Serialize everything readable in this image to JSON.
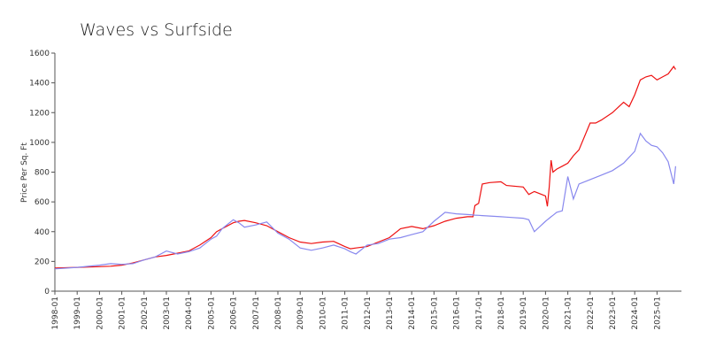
{
  "chart_data": {
    "type": "line",
    "title": "Waves vs Surfside",
    "y_label": "Price Per Sq. Ft",
    "x": [
      "1998-01",
      "1999-01",
      "2000-01",
      "2000-07",
      "2001-01",
      "2001-07",
      "2002-01",
      "2002-07",
      "2003-01",
      "2003-07",
      "2004-01",
      "2004-07",
      "2005-01",
      "2005-04",
      "2005-07",
      "2006-01",
      "2006-04",
      "2006-07",
      "2007-01",
      "2007-07",
      "2008-01",
      "2008-07",
      "2009-01",
      "2009-07",
      "2010-01",
      "2010-07",
      "2011-01",
      "2011-04",
      "2011-07",
      "2012-01",
      "2012-07",
      "2013-01",
      "2013-07",
      "2014-01",
      "2014-07",
      "2015-01",
      "2015-07",
      "2016-01",
      "2016-07",
      "2016-10",
      "2016-11",
      "2017-01",
      "2017-03",
      "2017-07",
      "2018-01",
      "2018-04",
      "2019-01",
      "2019-04",
      "2019-07",
      "2020-01",
      "2020-02",
      "2020-03",
      "2020-04",
      "2020-05",
      "2020-07",
      "2020-10",
      "2021-01",
      "2021-04",
      "2021-07",
      "2022-01",
      "2022-04",
      "2022-07",
      "2023-01",
      "2023-07",
      "2023-10",
      "2024-01",
      "2024-04",
      "2024-07",
      "2024-10",
      "2025-01",
      "2025-04",
      "2025-07",
      "2025-10",
      "2025-11"
    ],
    "series": [
      {
        "color": "#ee1111",
        "values": [
          155,
          160,
          165,
          168,
          175,
          190,
          210,
          230,
          240,
          255,
          270,
          310,
          360,
          400,
          420,
          460,
          470,
          475,
          460,
          440,
          400,
          360,
          330,
          320,
          330,
          335,
          300,
          285,
          290,
          300,
          330,
          360,
          420,
          435,
          420,
          440,
          470,
          490,
          500,
          500,
          575,
          590,
          720,
          730,
          735,
          710,
          700,
          650,
          670,
          640,
          570,
          700,
          880,
          800,
          820,
          840,
          860,
          910,
          950,
          1130,
          1130,
          1150,
          1200,
          1270,
          1240,
          1320,
          1420,
          1440,
          1450,
          1420,
          1440,
          1460,
          1510,
          1490
        ]
      },
      {
        "color": "#8888ee",
        "values": [
          150,
          160,
          175,
          185,
          180,
          185,
          210,
          230,
          270,
          250,
          265,
          290,
          350,
          370,
          420,
          480,
          460,
          430,
          445,
          465,
          390,
          350,
          290,
          275,
          290,
          310,
          285,
          265,
          250,
          310,
          320,
          350,
          360,
          380,
          400,
          470,
          530,
          520,
          515,
          512,
          511,
          510,
          508,
          505,
          500,
          498,
          490,
          480,
          400,
          470,
          480,
          490,
          500,
          510,
          530,
          540,
          770,
          620,
          720,
          750,
          765,
          780,
          810,
          860,
          900,
          940,
          1060,
          1010,
          980,
          970,
          930,
          870,
          720,
          840
        ]
      }
    ],
    "ylim": [
      0,
      1600
    ],
    "yticks": [
      0,
      200,
      400,
      600,
      800,
      1000,
      1200,
      1400,
      1600
    ],
    "xticks": [
      "1998-01",
      "1999-01",
      "2000-01",
      "2001-01",
      "2002-01",
      "2003-01",
      "2004-01",
      "2005-01",
      "2006-01",
      "2007-01",
      "2008-01",
      "2009-01",
      "2010-01",
      "2011-01",
      "2012-01",
      "2013-01",
      "2014-01",
      "2015-01",
      "2016-01",
      "2017-01",
      "2018-01",
      "2019-01",
      "2020-01",
      "2021-01",
      "2022-01",
      "2023-01",
      "2024-01",
      "2025-01"
    ]
  }
}
